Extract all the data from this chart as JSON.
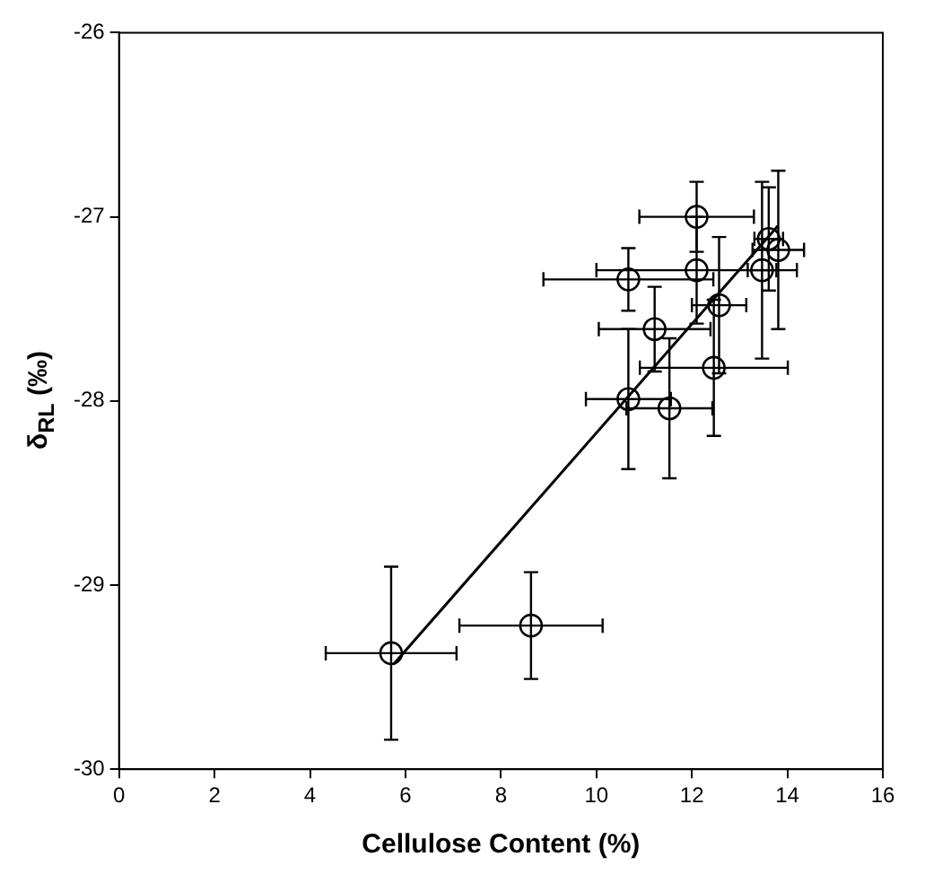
{
  "chart_data": {
    "type": "scatter",
    "xlabel": "Cellulose Content (%)",
    "ylabel": "δ$_{RL}$ (‰)",
    "xlim": [
      0,
      16
    ],
    "xticks": [
      0,
      2,
      4,
      6,
      8,
      10,
      12,
      14,
      16
    ],
    "ylim": [
      -30,
      -26
    ],
    "yticks": [
      -30,
      -29,
      -28,
      -27,
      -26
    ],
    "grid": false,
    "legend": false,
    "series": [
      {
        "color": "#000000",
        "marker": "circle",
        "x": [
          5.7,
          8.63,
          12.1,
          13.61,
          13.81,
          13.47,
          12.1,
          10.67,
          12.57,
          11.22,
          12.46,
          10.67,
          11.53
        ],
        "values": [
          -29.37,
          -29.22,
          -27.0,
          -27.12,
          -27.18,
          -27.29,
          -27.29,
          -27.34,
          -27.48,
          -27.61,
          -27.82,
          -27.99,
          -28.04
        ],
        "errors": [
          0.47,
          0.29,
          0.19,
          0.28,
          0.43,
          0.48,
          0.29,
          0.17,
          0.37,
          0.23,
          0.37,
          0.38,
          0.38
        ],
        "xerrors": [
          1.37,
          1.5,
          1.2,
          0.3,
          0.54,
          0.3,
          2.1,
          1.78,
          0.57,
          1.17,
          1.55,
          0.89,
          0.9
        ]
      },
      {
        "type": "line",
        "marker": "none",
        "color": "#000000",
        "x": [
          5.75,
          13.8
        ],
        "values": [
          -29.43,
          -27.05
        ]
      }
    ]
  }
}
